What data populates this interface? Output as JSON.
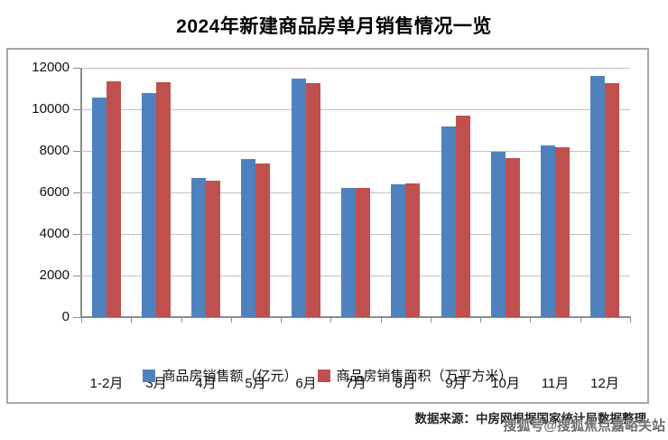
{
  "title": "2024年新建商品房单月销售情况一览",
  "chart_data": {
    "type": "bar",
    "categories": [
      "1-2月",
      "3月",
      "4月",
      "5月",
      "6月",
      "7月",
      "8月",
      "9月",
      "10月",
      "11月",
      "12月"
    ],
    "series": [
      {
        "name": "商品房销售额（亿元）",
        "color": "#4f81bd",
        "values": [
          10566,
          10789,
          6712,
          7598,
          11468,
          6197,
          6393,
          9157,
          7975,
          8270,
          11625
        ]
      },
      {
        "name": "商品房销售面积（万平方米）",
        "color": "#c0504d",
        "values": [
          11369,
          11299,
          6584,
          7390,
          11274,
          6233,
          6453,
          9682,
          7646,
          8188,
          11267
        ]
      }
    ],
    "ylim": [
      0,
      12000
    ],
    "yticks": [
      0,
      2000,
      4000,
      6000,
      8000,
      10000,
      12000
    ],
    "grid": true,
    "legend_position": "bottom",
    "xlabel": "",
    "ylabel": ""
  },
  "footer": {
    "source": "数据来源：中房网根据国家统计局数据整理",
    "watermark": "搜狐号@搜狐焦点嘉峪关站"
  }
}
